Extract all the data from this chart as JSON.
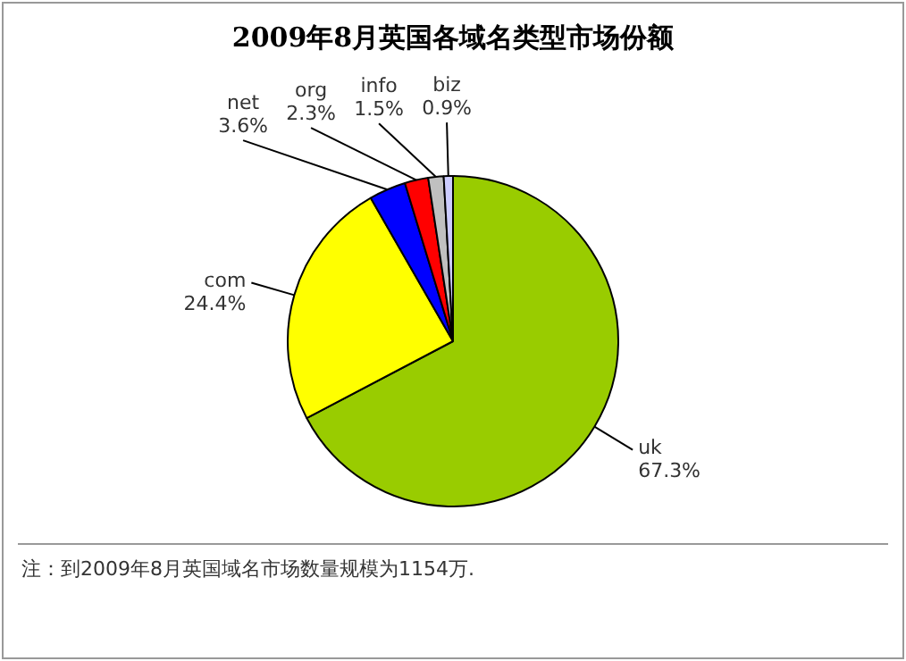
{
  "chart_data": {
    "type": "pie",
    "title": "2009年8月英国各域名类型市场份额",
    "categories": [
      "uk",
      "com",
      "net",
      "org",
      "info",
      "biz"
    ],
    "values": [
      67.3,
      24.4,
      3.6,
      2.3,
      1.5,
      0.9
    ],
    "colors": [
      "#99cc00",
      "#ffff00",
      "#0000ff",
      "#ff0000",
      "#c0c0c0",
      "#ccccff"
    ],
    "value_labels": [
      "67.3%",
      "24.4%",
      "3.6%",
      "2.3%",
      "1.5%",
      "0.9%"
    ],
    "legend": false,
    "annotations": [
      "注：到2009年8月英国域名市场数量规模为1154万."
    ]
  }
}
